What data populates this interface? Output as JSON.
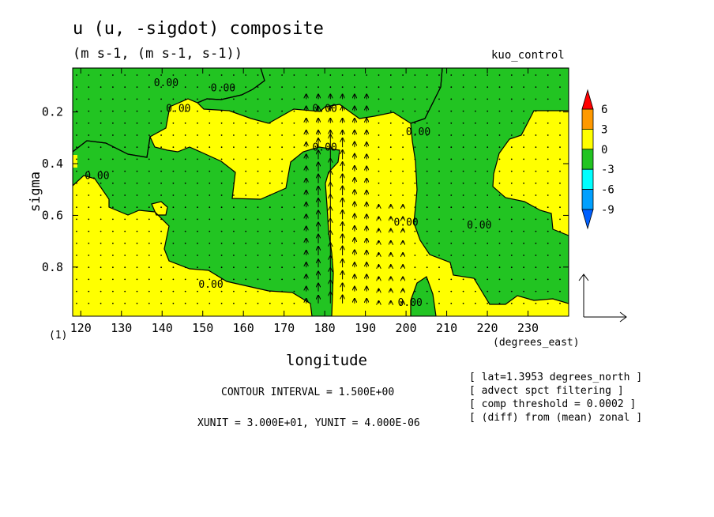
{
  "title": "u (u, -sigdot) composite",
  "subtitle": "(m s-1, (m s-1, s-1))",
  "run_name": "kuo_control",
  "frame_label": "(1)",
  "contour_interval_text": "CONTOUR INTERVAL = 1.500E+00",
  "xy_unit_text": "XUNIT = 3.000E+01, YUNIT = 4.000E-06",
  "notes": [
    "[ lat=1.3953 degrees_north ]",
    "[ advect spct filtering ]",
    "[ comp threshold = 0.0002 ]",
    "[ (diff) from (mean) zonal ]"
  ],
  "colors": {
    "positive_0_3": "#ffff00",
    "negative_0_3": "#22c422",
    "band_3_6": "#ff9900",
    "band_gt6": "#ff0000",
    "band_m6_m3": "#00ffff",
    "band_m9_m6": "#00a0ff",
    "band_lt_m9": "#0060ff"
  },
  "chart_data": {
    "type": "heatmap",
    "description_of_layers": [
      "filled contours of u",
      "vector field (u, -sigdot)"
    ],
    "xlabel": "longitude",
    "xunits": "(degrees_east)",
    "ylabel": "sigma",
    "xlim": [
      118,
      240
    ],
    "ylim": [
      0.03,
      0.99
    ],
    "y_inverted": true,
    "x_ticks": [
      120,
      130,
      140,
      150,
      160,
      170,
      180,
      190,
      200,
      210,
      220,
      230
    ],
    "y_ticks": [
      0.2,
      0.4,
      0.6,
      0.8
    ],
    "y_tick_labels": [
      "0.2",
      "0.4",
      "0.6",
      "0.8"
    ],
    "contour_labels": [
      {
        "text": "0.00",
        "lon": 141,
        "sigma": 0.1
      },
      {
        "text": "0.00",
        "lon": 155,
        "sigma": 0.12
      },
      {
        "text": "0.00",
        "lon": 144,
        "sigma": 0.2
      },
      {
        "text": "0.00",
        "lon": 124,
        "sigma": 0.46
      },
      {
        "text": "0.00",
        "lon": 180,
        "sigma": 0.2
      },
      {
        "text": "0.00",
        "lon": 180,
        "sigma": 0.35
      },
      {
        "text": "0.00",
        "lon": 203,
        "sigma": 0.29
      },
      {
        "text": "0.00",
        "lon": 200,
        "sigma": 0.64
      },
      {
        "text": "0.00",
        "lon": 218,
        "sigma": 0.65
      },
      {
        "text": "0.00",
        "lon": 152,
        "sigma": 0.88
      },
      {
        "text": "0.00",
        "lon": 201,
        "sigma": 0.95
      }
    ],
    "colorbar": {
      "levels": [
        -9,
        -6,
        -3,
        0,
        3,
        6
      ],
      "labels": [
        "6",
        "3",
        "0",
        "-3",
        "-6",
        "-9"
      ]
    },
    "reference_vector": {
      "x_unit": "3.000E+01",
      "y_unit": "4.000E-06"
    }
  }
}
